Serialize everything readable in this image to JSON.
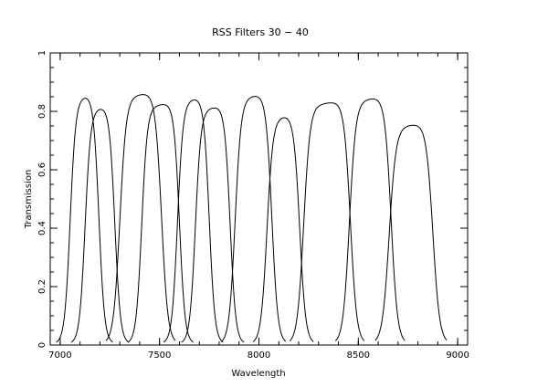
{
  "chart_data": {
    "type": "line",
    "title": "RSS Filters 30 − 40",
    "xlabel": "Wavelength",
    "ylabel": "Transmission",
    "xlim": [
      6950,
      9050
    ],
    "ylim": [
      0,
      1
    ],
    "xticks": [
      7000,
      7500,
      8000,
      8500,
      9000
    ],
    "xticks_minor_step": 100,
    "yticks": [
      0,
      0.2,
      0.4,
      0.6,
      0.8,
      1
    ],
    "yticks_minor_step": 0.05,
    "ytick_labels": [
      "0",
      "0.2",
      "0.4",
      "0.6",
      "0.8",
      "1"
    ],
    "grid": false,
    "legend": "none",
    "series": [
      {
        "edges": [
          7050,
          7195
        ],
        "peak": 0.85,
        "width": 14
      },
      {
        "edges": [
          7125,
          7275
        ],
        "peak": 0.81,
        "width": 14
      },
      {
        "edges": [
          7300,
          7510
        ],
        "peak": 0.855,
        "width": 16
      },
      {
        "edges": [
          7410,
          7600
        ],
        "peak": 0.82,
        "width": 14
      },
      {
        "edges": [
          7590,
          7750
        ],
        "peak": 0.84,
        "width": 14
      },
      {
        "edges": [
          7680,
          7855
        ],
        "peak": 0.81,
        "width": 14
      },
      {
        "edges": [
          7880,
          8065
        ],
        "peak": 0.85,
        "width": 15
      },
      {
        "edges": [
          8040,
          8205
        ],
        "peak": 0.78,
        "width": 15
      },
      {
        "edges": [
          8225,
          8460
        ],
        "peak": 0.825,
        "width": 16
      },
      {
        "edges": [
          8455,
          8665
        ],
        "peak": 0.84,
        "width": 16
      },
      {
        "edges": [
          8655,
          8875
        ],
        "peak": 0.75,
        "width": 17
      }
    ]
  }
}
